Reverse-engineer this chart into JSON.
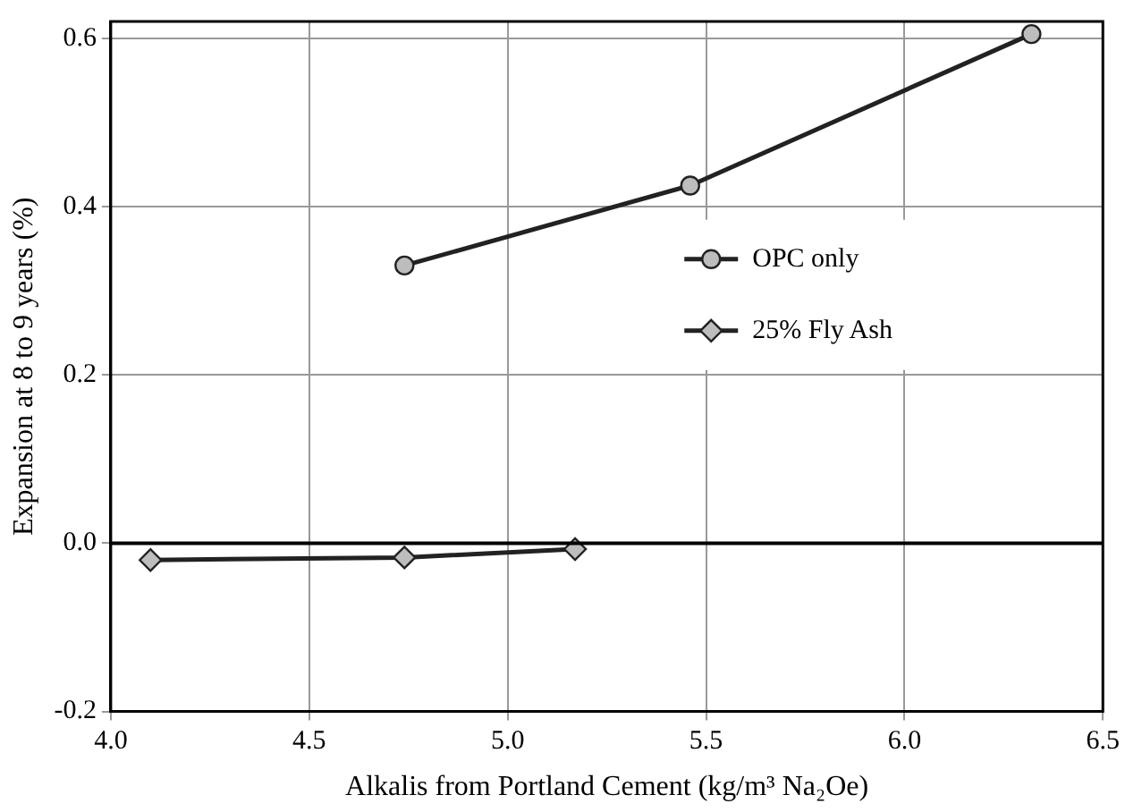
{
  "chart_data": {
    "type": "line",
    "xlabel": "Alkalis from Portland Cement (kg/m³ Na₂Oe)",
    "ylabel": "Expansion at 8 to 9 years (%)",
    "series": [
      {
        "name": "OPC only",
        "color": "#222222",
        "marker": "circle",
        "x": [
          4.74,
          5.46,
          6.32
        ],
        "values": [
          0.33,
          0.425,
          0.605
        ]
      },
      {
        "name": "25% Fly Ash",
        "color": "#222222",
        "marker": "diamond",
        "x": [
          4.1,
          4.74,
          5.17
        ],
        "values": [
          -0.02,
          -0.017,
          -0.007
        ]
      }
    ],
    "xlim": [
      4.0,
      6.5
    ],
    "xticks": [
      {
        "value": 4.0,
        "label": "4.0"
      },
      {
        "value": 4.5,
        "label": "4.5"
      },
      {
        "value": 5.0,
        "label": "5.0"
      },
      {
        "value": 5.5,
        "label": "5.5"
      },
      {
        "value": 6.0,
        "label": "6.0"
      },
      {
        "value": 6.5,
        "label": "6.5"
      }
    ],
    "ylim": [
      -0.2,
      0.62
    ],
    "yticks": [
      {
        "value": -0.2,
        "label": "-0.2"
      },
      {
        "value": 0,
        "label": "0.0"
      },
      {
        "value": 0.2,
        "label": "0.2"
      },
      {
        "value": 0.4,
        "label": "0.4"
      },
      {
        "value": 0.6,
        "label": "0.6"
      }
    ],
    "ref_lines": [
      {
        "axis": "y",
        "value": 0,
        "color": "#000000"
      }
    ],
    "grid": true,
    "legend": "right",
    "line_style": "solid"
  }
}
